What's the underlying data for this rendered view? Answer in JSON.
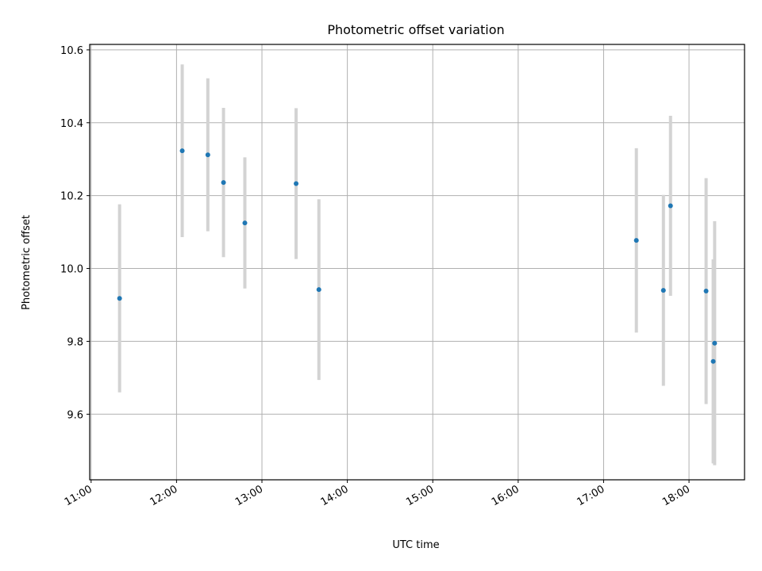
{
  "chart_data": {
    "type": "scatter",
    "title": "Photometric offset variation",
    "xlabel": "UTC time",
    "ylabel": "Photometric offset",
    "x_ticks": [
      "11:00",
      "12:00",
      "13:00",
      "14:00",
      "15:00",
      "16:00",
      "17:00",
      "18:00"
    ],
    "y_ticks": [
      "9.6",
      "9.8",
      "10.0",
      "10.2",
      "10.4",
      "10.6"
    ],
    "xlim": [
      "10:59",
      "18:39"
    ],
    "ylim": [
      9.42,
      10.615
    ],
    "grid": true,
    "point_color": "#1f77b4",
    "errorbar_color": "#d3d3d3",
    "points": [
      {
        "time": "11:20",
        "y": 9.918,
        "err": 0.258
      },
      {
        "time": "12:04",
        "y": 10.323,
        "err": 0.237
      },
      {
        "time": "12:22",
        "y": 10.312,
        "err": 0.21
      },
      {
        "time": "12:33",
        "y": 10.236,
        "err": 0.205
      },
      {
        "time": "12:48",
        "y": 10.125,
        "err": 0.18
      },
      {
        "time": "13:24",
        "y": 10.233,
        "err": 0.207
      },
      {
        "time": "13:40",
        "y": 9.942,
        "err": 0.248
      },
      {
        "time": "17:23",
        "y": 10.077,
        "err": 0.253
      },
      {
        "time": "17:42",
        "y": 9.94,
        "err": 0.262
      },
      {
        "time": "17:47",
        "y": 10.172,
        "err": 0.247
      },
      {
        "time": "18:12",
        "y": 9.938,
        "err": 0.31
      },
      {
        "time": "18:18",
        "y": 9.795,
        "err": 0.335
      },
      {
        "time": "18:17",
        "y": 9.745,
        "err": 0.28
      }
    ]
  }
}
